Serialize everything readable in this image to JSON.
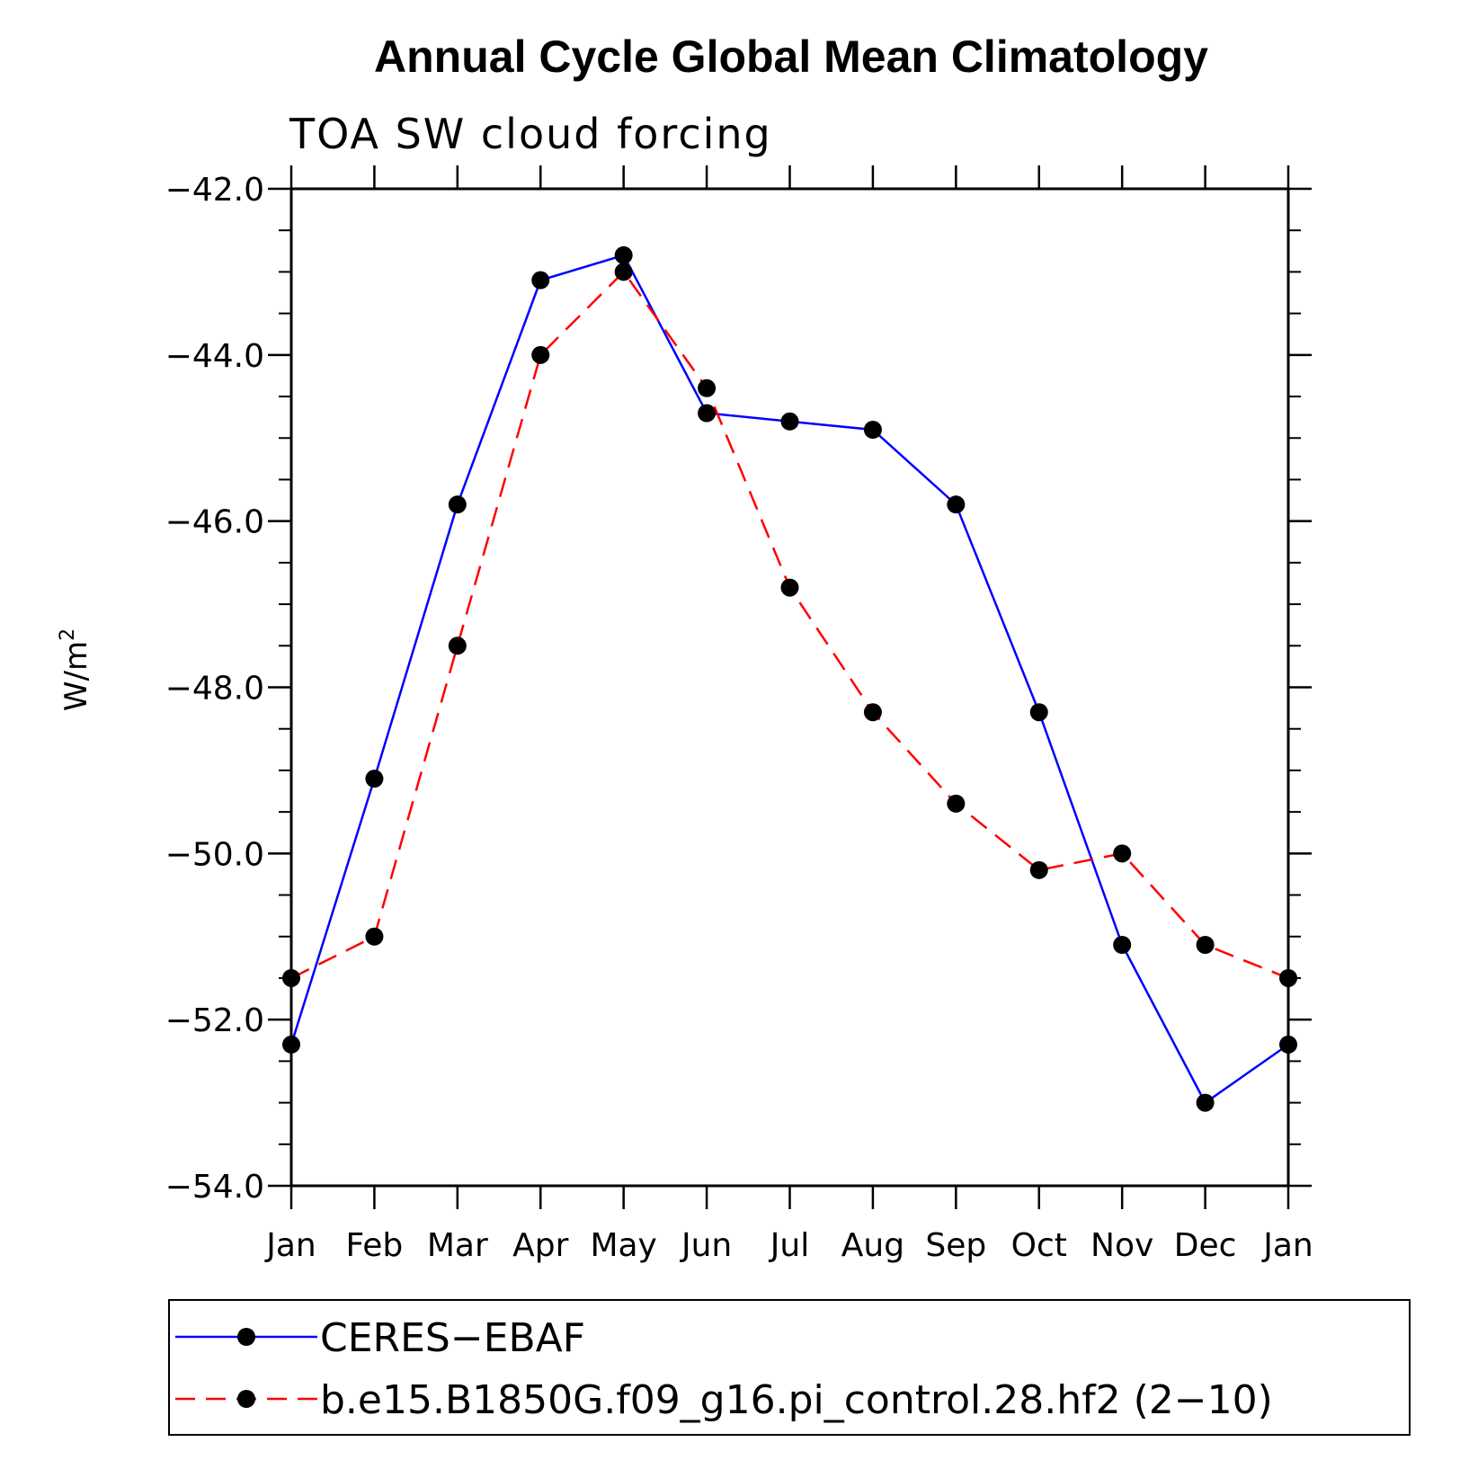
{
  "chart_data": {
    "type": "line",
    "title": "Annual Cycle Global Mean Climatology",
    "subtitle": "TOA SW cloud forcing",
    "ylabel": "W/m",
    "ylabel_superscript": "2",
    "ylim": [
      -54.0,
      -42.0
    ],
    "yticks": [
      -42.0,
      -44.0,
      -46.0,
      -48.0,
      -50.0,
      -52.0,
      -54.0
    ],
    "ytick_labels": [
      "−42.0",
      "−44.0",
      "−46.0",
      "−48.0",
      "−50.0",
      "−52.0",
      "−54.0"
    ],
    "y_minor_step": 0.5,
    "categories": [
      "Jan",
      "Feb",
      "Mar",
      "Apr",
      "May",
      "Jun",
      "Jul",
      "Aug",
      "Sep",
      "Oct",
      "Nov",
      "Dec",
      "Jan"
    ],
    "grid": false,
    "legend_position": "bottom",
    "series": [
      {
        "name": "CERES−EBAF",
        "color": "#0000ff",
        "dash": "solid",
        "marker": "filled-circle",
        "values": [
          -52.3,
          -49.1,
          -45.8,
          -43.1,
          -42.8,
          -44.7,
          -44.8,
          -44.9,
          -45.8,
          -48.3,
          -51.1,
          -53.0,
          -52.3
        ]
      },
      {
        "name": "b.e15.B1850G.f09_g16.pi_control.28.hf2 (2−10)",
        "color": "#ff0000",
        "dash": "dashed",
        "marker": "filled-circle",
        "values": [
          -51.5,
          -51.0,
          -47.5,
          -44.0,
          -43.0,
          -44.4,
          -46.8,
          -48.3,
          -49.4,
          -50.2,
          -50.0,
          -51.1,
          -51.5
        ]
      }
    ]
  }
}
